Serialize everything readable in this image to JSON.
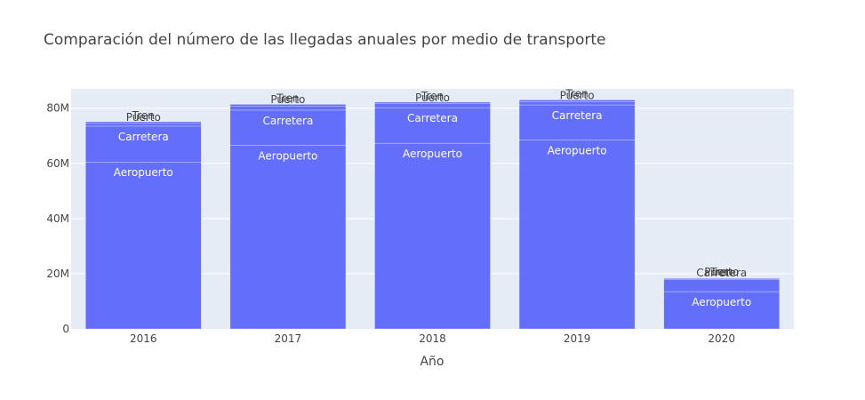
{
  "chart_data": {
    "type": "bar",
    "stacked": true,
    "title": "Comparación del número de las llegadas anuales por medio de transporte",
    "xlabel": "Año",
    "ylabel": "",
    "categories": [
      "2016",
      "2017",
      "2018",
      "2019",
      "2020"
    ],
    "ylim": [
      0,
      87000000
    ],
    "yticks": [
      0,
      20000000,
      40000000,
      60000000,
      80000000
    ],
    "ytick_labels": [
      "0",
      "20M",
      "40M",
      "60M",
      "80M"
    ],
    "bar_color": "#636efa",
    "plot_bg": "#e5ecf6",
    "grid": true,
    "series": [
      {
        "name": "Aeropuerto",
        "values": [
          60500000,
          66500000,
          67300000,
          68500000,
          13500000
        ]
      },
      {
        "name": "Carretera",
        "values": [
          13000000,
          12800000,
          12900000,
          12700000,
          4500000
        ]
      },
      {
        "name": "Puerto",
        "values": [
          1000000,
          1500000,
          1400000,
          1200000,
          300000
        ]
      },
      {
        "name": "Tren",
        "values": [
          600000,
          600000,
          600000,
          600000,
          100000
        ]
      }
    ]
  }
}
